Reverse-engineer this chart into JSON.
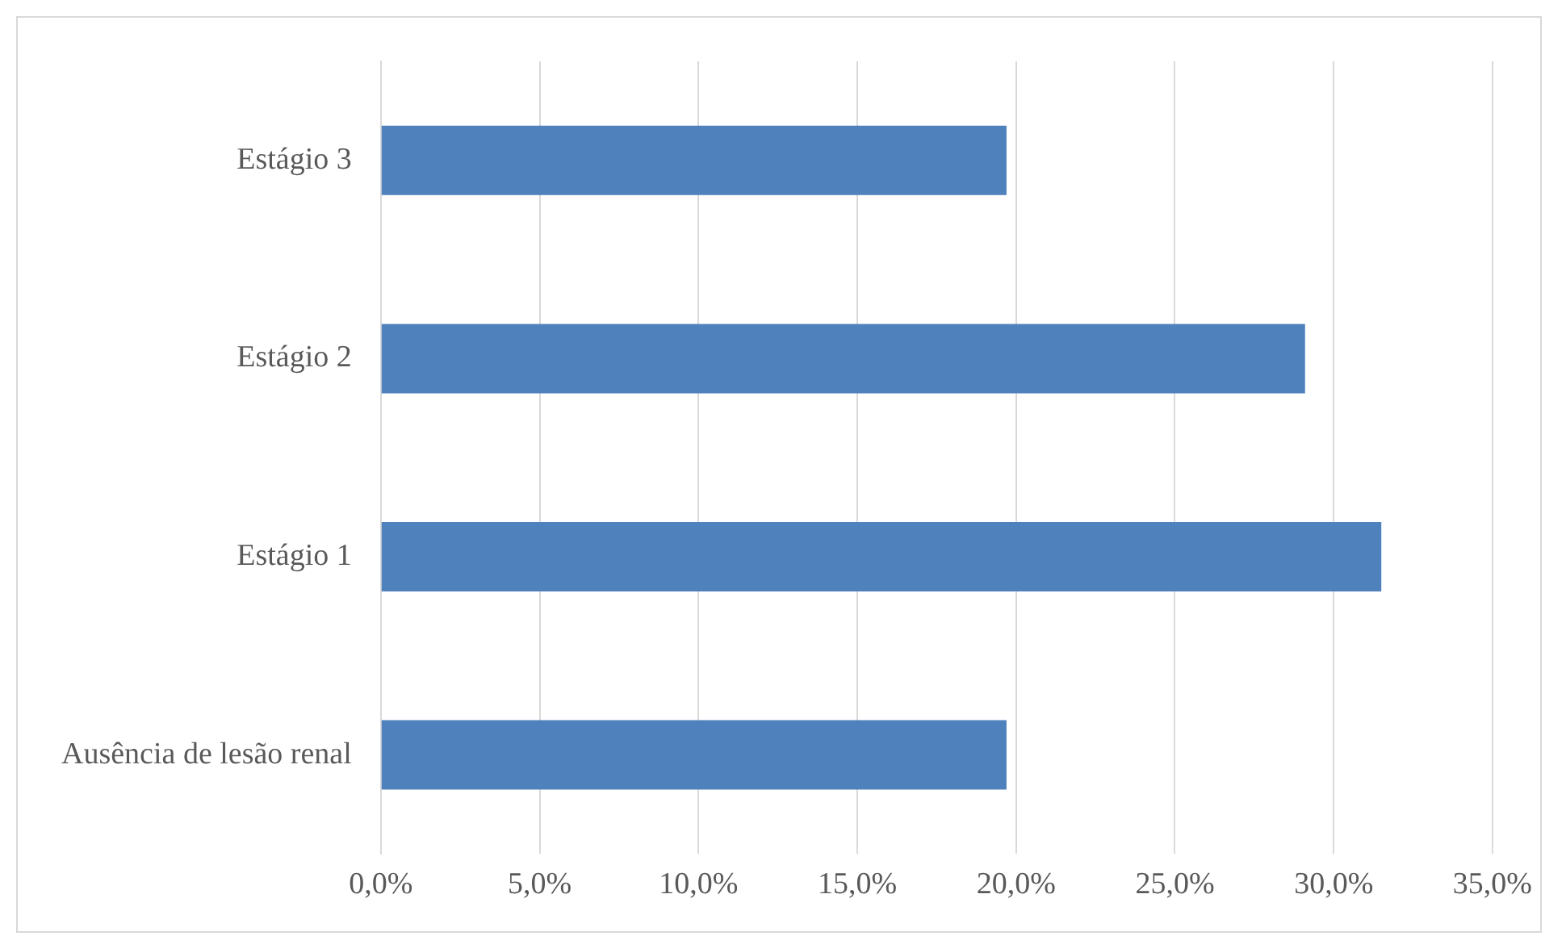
{
  "chart_data": {
    "type": "bar",
    "orientation": "horizontal",
    "categories": [
      "Estágio 3",
      "Estágio 2",
      "Estágio 1",
      "Ausência de lesão renal"
    ],
    "values": [
      19.7,
      29.1,
      31.5,
      19.7
    ],
    "color": "#4f81bd",
    "xlim": [
      0,
      35
    ],
    "xticks": [
      {
        "value": 0,
        "label": "0,0%"
      },
      {
        "value": 5,
        "label": "5,0%"
      },
      {
        "value": 10,
        "label": "10,0%"
      },
      {
        "value": 15,
        "label": "15,0%"
      },
      {
        "value": 20,
        "label": "20,0%"
      },
      {
        "value": 25,
        "label": "25,0%"
      },
      {
        "value": 30,
        "label": "30,0%"
      },
      {
        "value": 35,
        "label": "35,0%"
      }
    ],
    "grid": "x",
    "legend": false
  }
}
